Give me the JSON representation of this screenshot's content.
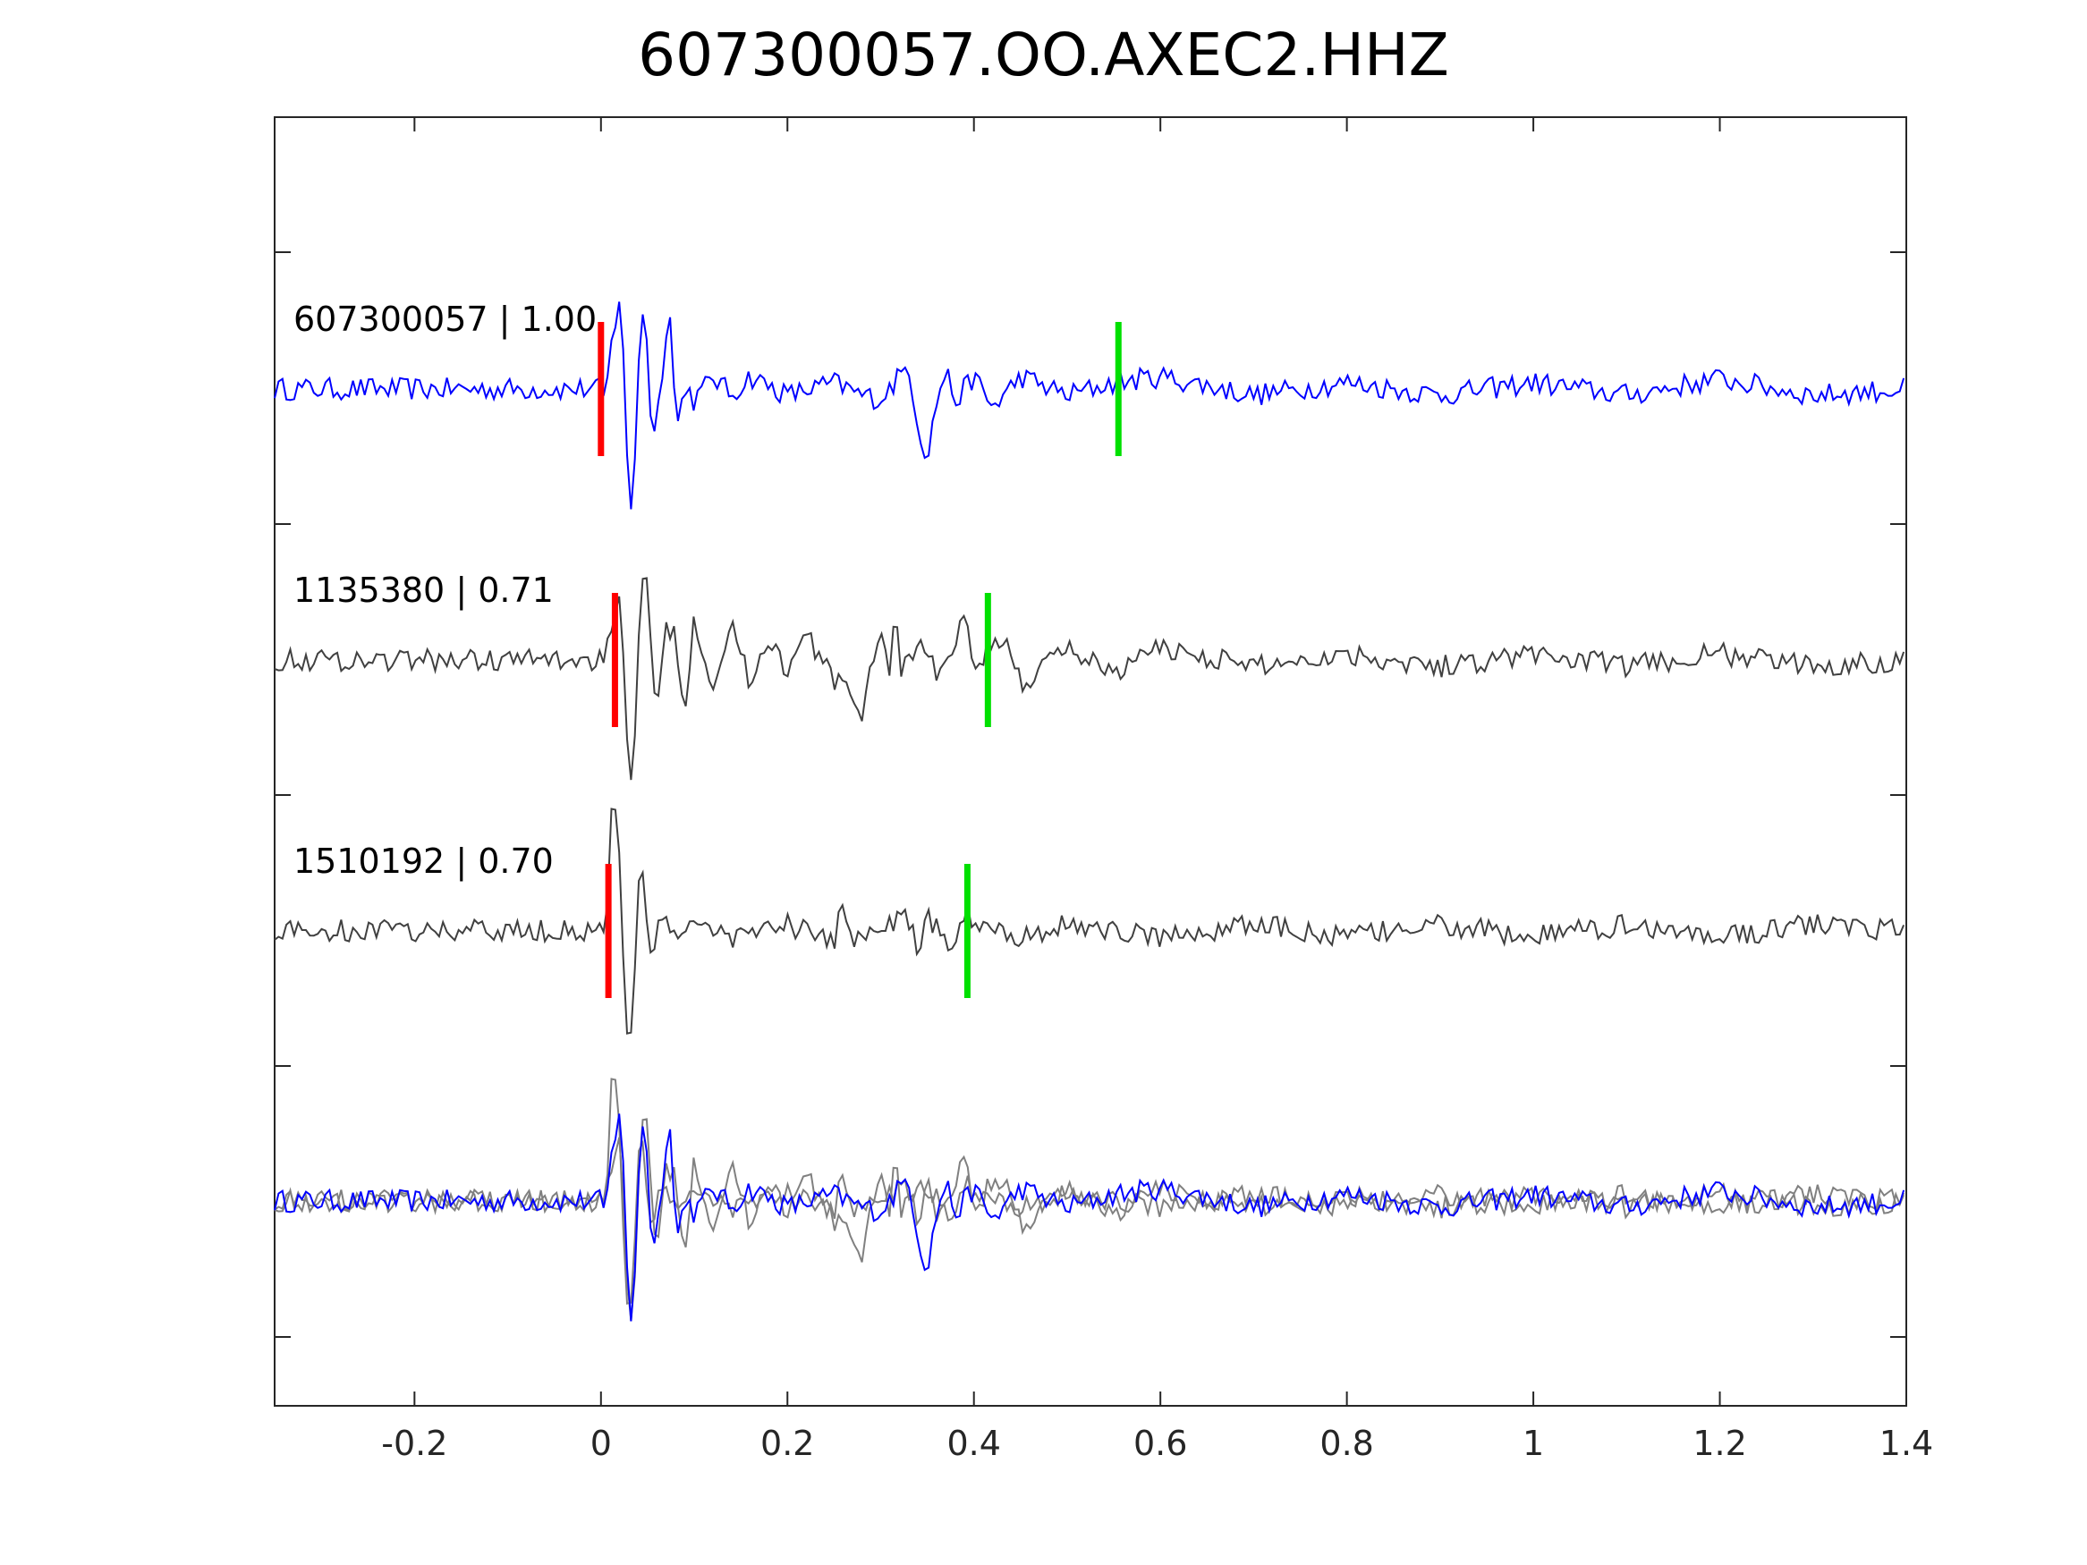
{
  "chart_data": {
    "type": "line",
    "title": "607300057.OO.AXEC2.HHZ",
    "xlabel": "",
    "ylabel": "",
    "xlim": [
      -0.35,
      1.4
    ],
    "x_ticks": [
      "-0.2",
      "0",
      "0.2",
      "0.4",
      "0.6",
      "0.8",
      "1",
      "1.2",
      "1.4"
    ],
    "x_tick_values": [
      -0.2,
      0,
      0.2,
      0.4,
      0.6,
      0.8,
      1.0,
      1.2,
      1.4
    ],
    "grid": false,
    "traces": [
      {
        "label": "607300057 | 1.00",
        "color": "#0000ff",
        "p_pick": 0.0,
        "s_pick": 0.555,
        "waveform": [
          [
            -0.35,
            0.0
          ],
          [
            0.0,
            0.0
          ],
          [
            0.005,
            -0.1
          ],
          [
            0.01,
            0.3
          ],
          [
            0.02,
            0.75
          ],
          [
            0.025,
            0.2
          ],
          [
            0.03,
            -1.1
          ],
          [
            0.035,
            -0.8
          ],
          [
            0.04,
            0.2
          ],
          [
            0.045,
            0.65
          ],
          [
            0.05,
            0.3
          ],
          [
            0.055,
            -0.4
          ],
          [
            0.06,
            -0.25
          ],
          [
            0.065,
            0.1
          ],
          [
            0.07,
            0.5
          ],
          [
            0.075,
            0.6
          ],
          [
            0.08,
            -0.3
          ],
          [
            0.085,
            -0.2
          ],
          [
            0.09,
            0.05
          ],
          [
            0.1,
            -0.1
          ],
          [
            0.12,
            0.1
          ],
          [
            0.14,
            -0.05
          ],
          [
            0.16,
            0.1
          ],
          [
            0.2,
            -0.05
          ],
          [
            0.25,
            0.05
          ],
          [
            0.28,
            -0.05
          ],
          [
            0.3,
            -0.08
          ],
          [
            0.32,
            0.1
          ],
          [
            0.33,
            0.2
          ],
          [
            0.34,
            -0.3
          ],
          [
            0.35,
            -0.55
          ],
          [
            0.36,
            -0.1
          ],
          [
            0.37,
            0.15
          ],
          [
            0.38,
            -0.1
          ],
          [
            0.4,
            0.1
          ],
          [
            0.42,
            -0.15
          ],
          [
            0.45,
            0.1
          ],
          [
            0.5,
            -0.05
          ],
          [
            0.55,
            0.05
          ],
          [
            0.6,
            0.1
          ],
          [
            0.7,
            -0.05
          ],
          [
            0.8,
            0.05
          ],
          [
            0.9,
            -0.05
          ],
          [
            1.0,
            0.05
          ],
          [
            1.1,
            -0.05
          ],
          [
            1.2,
            0.08
          ],
          [
            1.3,
            -0.05
          ],
          [
            1.4,
            0.0
          ]
        ]
      },
      {
        "label": "1135380 | 0.71",
        "color": "#404040",
        "p_pick": 0.015,
        "s_pick": 0.415,
        "waveform": [
          [
            -0.35,
            0.0
          ],
          [
            0.0,
            0.0
          ],
          [
            0.01,
            0.15
          ],
          [
            0.02,
            0.45
          ],
          [
            0.025,
            -0.15
          ],
          [
            0.03,
            -1.1
          ],
          [
            0.035,
            -0.8
          ],
          [
            0.04,
            0.2
          ],
          [
            0.045,
            0.65
          ],
          [
            0.05,
            0.55
          ],
          [
            0.06,
            -0.5
          ],
          [
            0.07,
            0.3
          ],
          [
            0.08,
            0.2
          ],
          [
            0.09,
            -0.4
          ],
          [
            0.1,
            0.35
          ],
          [
            0.12,
            -0.2
          ],
          [
            0.14,
            0.3
          ],
          [
            0.16,
            -0.2
          ],
          [
            0.18,
            0.2
          ],
          [
            0.2,
            -0.1
          ],
          [
            0.22,
            0.2
          ],
          [
            0.25,
            -0.15
          ],
          [
            0.28,
            -0.4
          ],
          [
            0.3,
            0.3
          ],
          [
            0.31,
            -0.2
          ],
          [
            0.315,
            0.55
          ],
          [
            0.32,
            -0.1
          ],
          [
            0.34,
            0.15
          ],
          [
            0.36,
            -0.1
          ],
          [
            0.38,
            0.1
          ],
          [
            0.39,
            0.35
          ],
          [
            0.4,
            -0.1
          ],
          [
            0.415,
            0.1
          ],
          [
            0.44,
            0.1
          ],
          [
            0.45,
            -0.2
          ],
          [
            0.5,
            0.1
          ],
          [
            0.55,
            -0.1
          ],
          [
            0.6,
            0.1
          ],
          [
            0.7,
            -0.05
          ],
          [
            0.8,
            0.05
          ],
          [
            0.9,
            -0.05
          ],
          [
            1.0,
            0.05
          ],
          [
            1.1,
            -0.05
          ],
          [
            1.2,
            0.05
          ],
          [
            1.3,
            -0.05
          ],
          [
            1.4,
            0.0
          ]
        ]
      },
      {
        "label": "1510192 | 0.70",
        "color": "#404040",
        "p_pick": 0.008,
        "s_pick": 0.393,
        "waveform": [
          [
            -0.35,
            0.0
          ],
          [
            0.0,
            0.0
          ],
          [
            0.005,
            -0.1
          ],
          [
            0.01,
            0.9
          ],
          [
            0.015,
            1.0
          ],
          [
            0.02,
            0.6
          ],
          [
            0.025,
            -0.4
          ],
          [
            0.03,
            -1.0
          ],
          [
            0.035,
            -0.6
          ],
          [
            0.04,
            0.3
          ],
          [
            0.045,
            0.4
          ],
          [
            0.055,
            -0.3
          ],
          [
            0.06,
            0.15
          ],
          [
            0.08,
            -0.1
          ],
          [
            0.1,
            0.1
          ],
          [
            0.14,
            -0.05
          ],
          [
            0.2,
            0.05
          ],
          [
            0.25,
            -0.1
          ],
          [
            0.26,
            0.25
          ],
          [
            0.27,
            -0.1
          ],
          [
            0.3,
            0.05
          ],
          [
            0.33,
            0.1
          ],
          [
            0.34,
            -0.2
          ],
          [
            0.35,
            0.1
          ],
          [
            0.38,
            -0.15
          ],
          [
            0.39,
            0.15
          ],
          [
            0.4,
            0.1
          ],
          [
            0.45,
            -0.05
          ],
          [
            0.5,
            0.05
          ],
          [
            0.6,
            -0.05
          ],
          [
            0.7,
            0.05
          ],
          [
            0.8,
            -0.05
          ],
          [
            0.9,
            0.05
          ],
          [
            1.0,
            -0.05
          ],
          [
            1.1,
            0.05
          ],
          [
            1.2,
            -0.05
          ],
          [
            1.3,
            0.05
          ],
          [
            1.4,
            0.0
          ]
        ]
      }
    ],
    "overlay_colors": [
      "#0000ff",
      "#808080",
      "#808080"
    ]
  }
}
